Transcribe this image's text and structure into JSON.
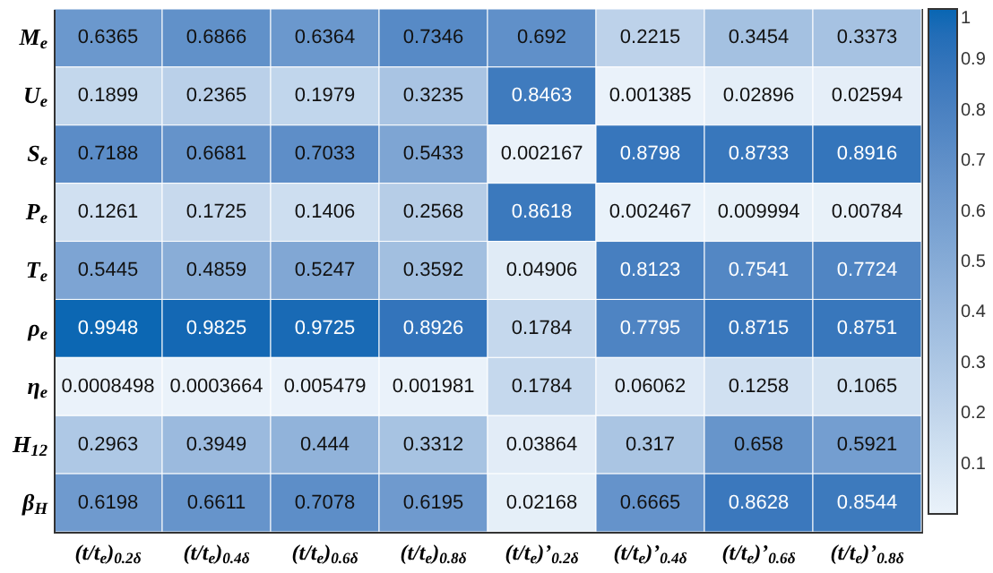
{
  "chart_data": {
    "type": "heatmap",
    "categories": [
      "(t/t$_{e}$)$_{0.2δ}$",
      "(t/t$_{e}$)$_{0.4δ}$",
      "(t/t$_{e}$)$_{0.6δ}$",
      "(t/t$_{e}$)$_{0.8δ}$",
      "(t/t$_{e}$)’$_{0.2δ}$",
      "(t/t$_{e}$)’$_{0.4δ}$",
      "(t/t$_{e}$)’$_{0.6δ}$",
      "(t/t$_{e}$)’$_{0.8δ}$"
    ],
    "y_categories": [
      "M$_{e}$",
      "U$_{e}$",
      "S$_{e}$",
      "P$_{e}$",
      "T$_{e}$",
      "ρ$_{e}$",
      "η$_{e}$",
      "H$_{12}$",
      "β$_{H}$"
    ],
    "cells": [
      [
        0.6365,
        0.6866,
        0.6364,
        0.7346,
        0.692,
        0.2215,
        0.3454,
        0.3373
      ],
      [
        0.1899,
        0.2365,
        0.1979,
        0.3235,
        0.8463,
        0.001385,
        0.02896,
        0.02594
      ],
      [
        0.7188,
        0.6681,
        0.7033,
        0.5433,
        0.002167,
        0.8798,
        0.8733,
        0.8916
      ],
      [
        0.1261,
        0.1725,
        0.1406,
        0.2568,
        0.8618,
        0.002467,
        0.009994,
        0.00784
      ],
      [
        0.5445,
        0.4859,
        0.5247,
        0.3592,
        0.04906,
        0.8123,
        0.7541,
        0.7724
      ],
      [
        0.9948,
        0.9825,
        0.9725,
        0.8926,
        0.1784,
        0.7795,
        0.8715,
        0.8751
      ],
      [
        0.0008498,
        0.0003664,
        0.005479,
        0.001981,
        0.1784,
        0.06062,
        0.1258,
        0.1065
      ],
      [
        0.2963,
        0.3949,
        0.444,
        0.3312,
        0.03864,
        0.317,
        0.658,
        0.5921
      ],
      [
        0.6198,
        0.6611,
        0.7078,
        0.6195,
        0.02168,
        0.6665,
        0.8628,
        0.8544
      ]
    ],
    "data_labels": true,
    "clim": [
      0,
      1
    ],
    "cticks": [
      0.1,
      0.2,
      0.3,
      0.4,
      0.5,
      0.6,
      0.7,
      0.8,
      0.9,
      1
    ]
  }
}
